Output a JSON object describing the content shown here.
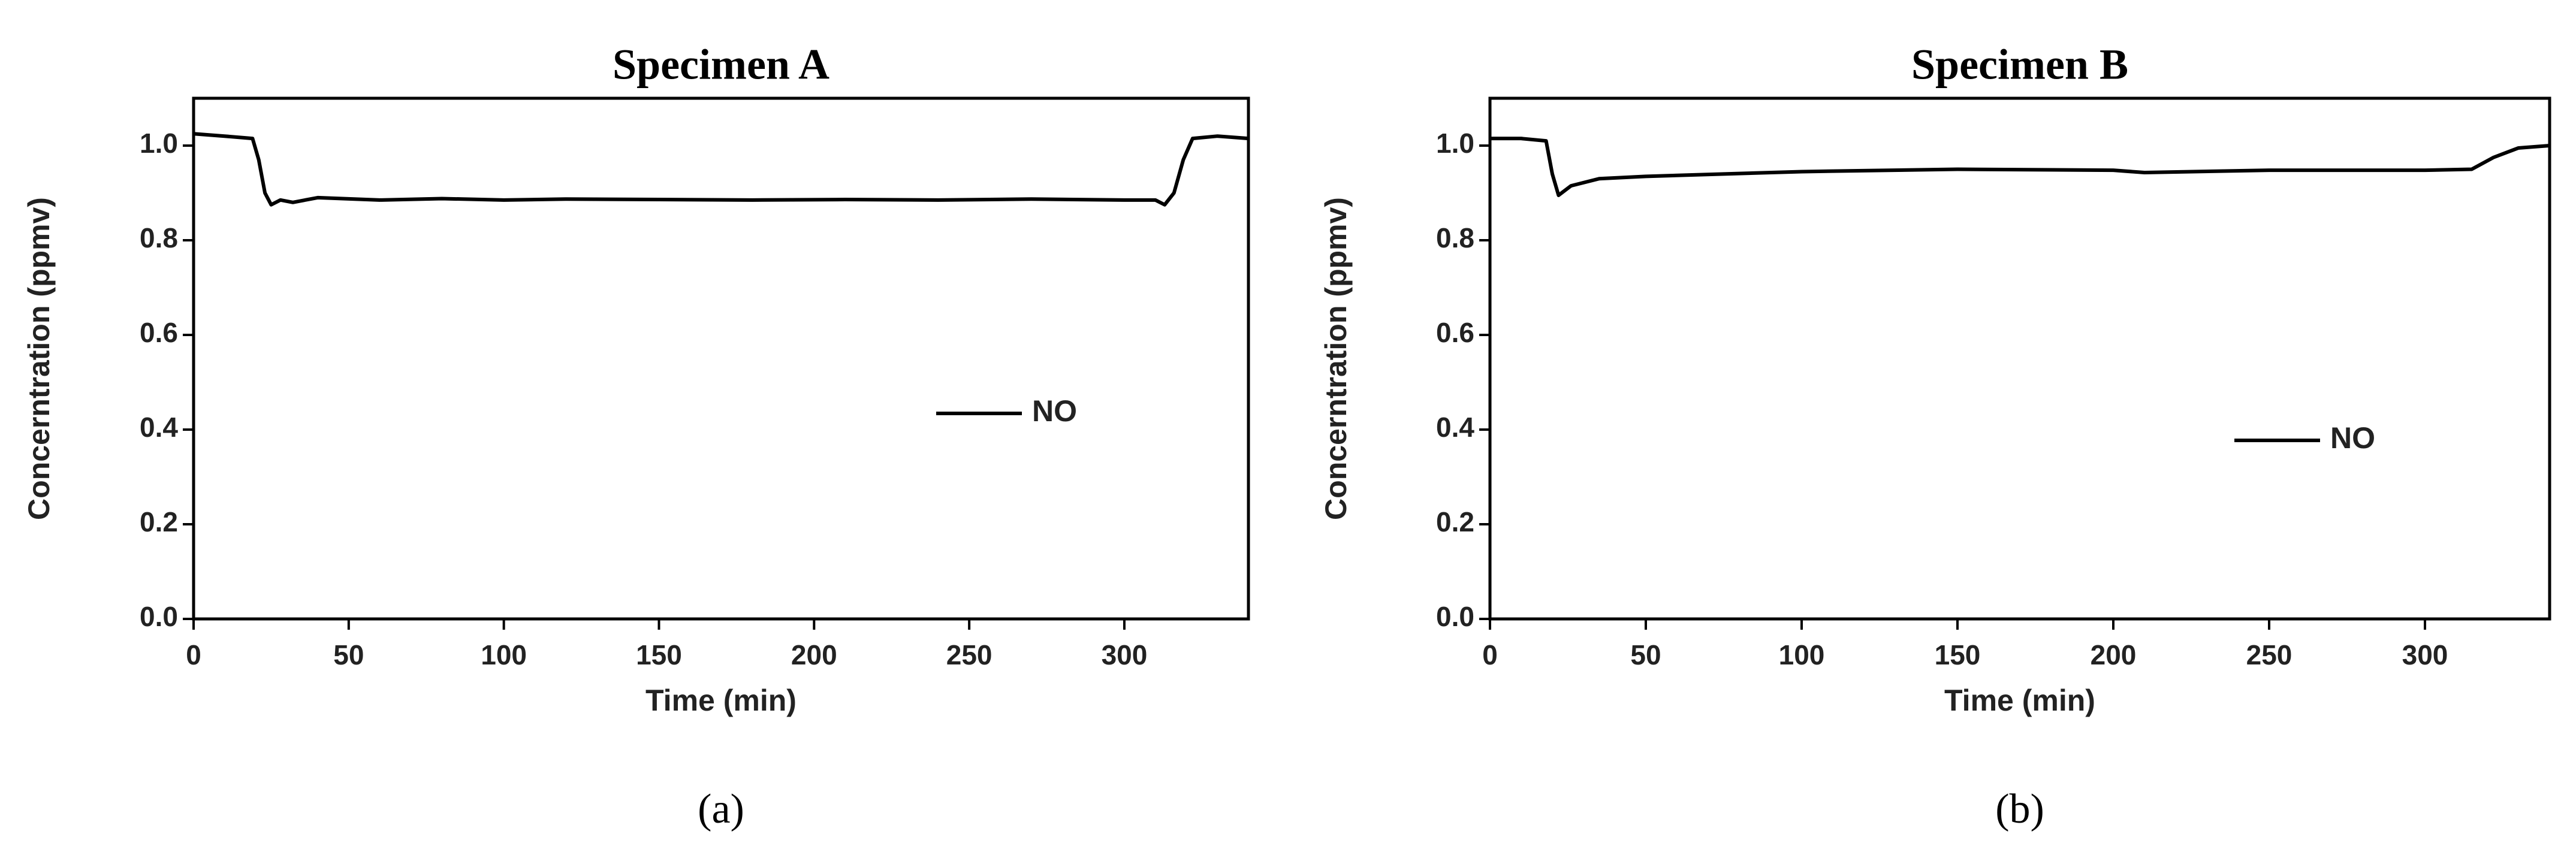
{
  "chart_data": [
    {
      "type": "line",
      "title": "Specimen A",
      "caption": "(a)",
      "xlabel": "Time (min)",
      "ylabel": "Concerntration (ppmv)",
      "x": [
        0,
        10,
        19,
        21,
        23,
        25,
        28,
        32,
        40,
        60,
        80,
        100,
        120,
        150,
        180,
        210,
        240,
        270,
        300,
        310,
        313,
        316,
        319,
        322,
        330,
        340
      ],
      "series": [
        {
          "name": "NO",
          "color": "#000000",
          "values": [
            1.025,
            1.02,
            1.015,
            0.97,
            0.9,
            0.875,
            0.885,
            0.88,
            0.89,
            0.885,
            0.888,
            0.885,
            0.887,
            0.886,
            0.885,
            0.886,
            0.885,
            0.887,
            0.885,
            0.885,
            0.875,
            0.9,
            0.97,
            1.015,
            1.02,
            1.015
          ]
        }
      ],
      "xlim": [
        0,
        340
      ],
      "ylim": [
        0,
        1.1
      ],
      "xticks": [
        0,
        50,
        100,
        150,
        200,
        250,
        300
      ],
      "yticks": [
        {
          "value": 0,
          "label": "0.0"
        },
        0.2,
        0.4,
        0.6,
        0.8,
        {
          "value": 1,
          "label": "1.0"
        }
      ]
    },
    {
      "type": "line",
      "title": "Specimen B",
      "caption": "(b)",
      "xlabel": "Time (min)",
      "ylabel": "Concerntration (ppmv)",
      "x": [
        0,
        10,
        18,
        20,
        22,
        26,
        35,
        50,
        75,
        100,
        150,
        200,
        210,
        250,
        300,
        315,
        322,
        330,
        340
      ],
      "series": [
        {
          "name": "NO",
          "color": "#000000",
          "values": [
            1.015,
            1.015,
            1.01,
            0.94,
            0.895,
            0.915,
            0.93,
            0.935,
            0.94,
            0.945,
            0.95,
            0.948,
            0.943,
            0.948,
            0.948,
            0.95,
            0.975,
            0.995,
            1.0
          ]
        }
      ],
      "xlim": [
        0,
        340
      ],
      "ylim": [
        0,
        1.1
      ],
      "xticks": [
        0,
        50,
        100,
        150,
        200,
        250,
        300
      ],
      "yticks": [
        {
          "value": 0,
          "label": "0.0"
        },
        0.2,
        0.4,
        0.6,
        0.8,
        {
          "value": 1,
          "label": "1.0"
        }
      ]
    }
  ]
}
